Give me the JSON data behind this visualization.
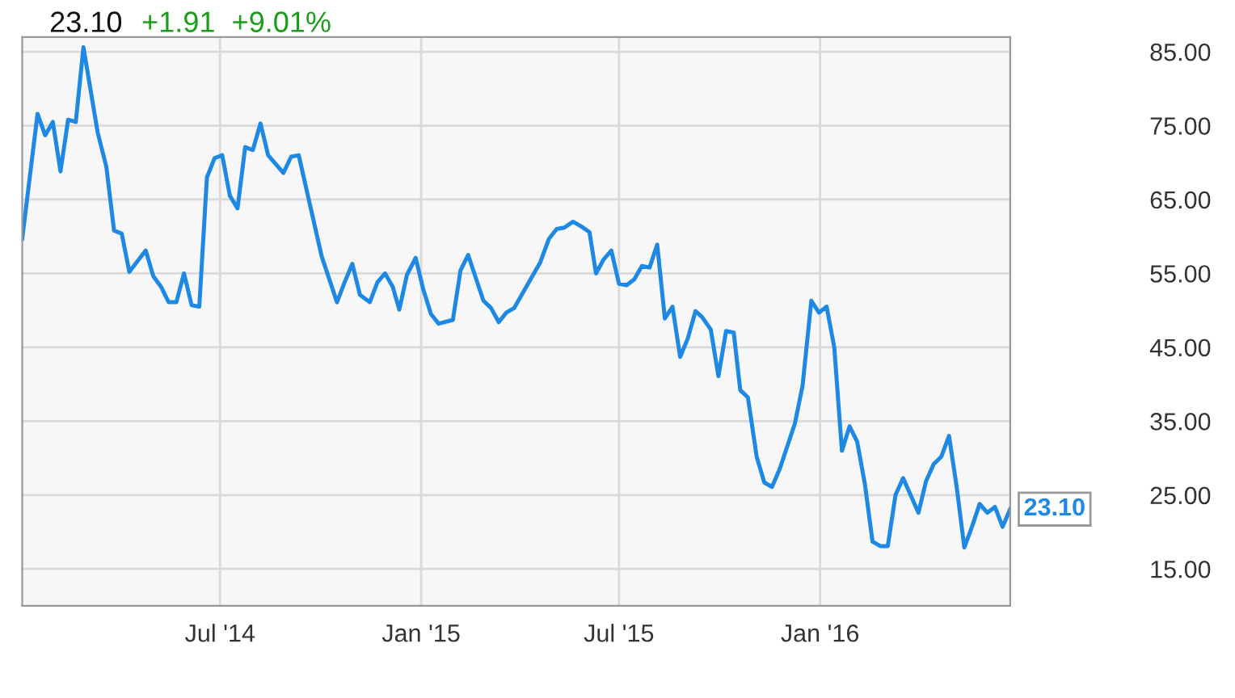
{
  "chart_data": {
    "type": "line",
    "title": "23.10",
    "subtitle": "+1.91  +9.01%",
    "x": [
      "2014-01-01",
      "2014-01-15",
      "2014-01-22",
      "2014-01-29",
      "2014-02-05",
      "2014-02-12",
      "2014-02-19",
      "2014-02-26",
      "2014-03-11",
      "2014-03-19",
      "2014-03-26",
      "2014-04-02",
      "2014-04-09",
      "2014-04-24",
      "2014-05-01",
      "2014-05-08",
      "2014-05-15",
      "2014-05-22",
      "2014-05-29",
      "2014-06-05",
      "2014-06-12",
      "2014-06-19",
      "2014-06-26",
      "2014-07-03",
      "2014-07-10",
      "2014-07-17",
      "2014-07-24",
      "2014-07-31",
      "2014-08-07",
      "2014-08-14",
      "2014-08-28",
      "2014-09-04",
      "2014-09-11",
      "2014-10-02",
      "2014-10-16",
      "2014-10-23",
      "2014-10-30",
      "2014-11-06",
      "2014-11-15",
      "2014-11-22",
      "2014-11-29",
      "2014-12-06",
      "2014-12-12",
      "2014-12-19",
      "2014-12-27",
      "2015-01-03",
      "2015-01-10",
      "2015-01-17",
      "2015-01-30",
      "2015-02-06",
      "2015-02-13",
      "2015-02-20",
      "2015-02-27",
      "2015-03-06",
      "2015-03-13",
      "2015-03-20",
      "2015-03-27",
      "2015-04-20",
      "2015-04-28",
      "2015-05-05",
      "2015-05-12",
      "2015-05-20",
      "2015-05-27",
      "2015-06-04",
      "2015-06-10",
      "2015-06-17",
      "2015-06-24",
      "2015-07-01",
      "2015-07-08",
      "2015-07-15",
      "2015-07-22",
      "2015-07-29",
      "2015-08-05",
      "2015-08-12",
      "2015-08-19",
      "2015-08-26",
      "2015-09-02",
      "2015-09-09",
      "2015-09-15",
      "2015-09-23",
      "2015-09-30",
      "2015-10-07",
      "2015-10-14",
      "2015-10-20",
      "2015-10-27",
      "2015-11-04",
      "2015-11-11",
      "2015-11-18",
      "2015-11-25",
      "2015-12-02",
      "2015-12-09",
      "2015-12-16",
      "2015-12-24",
      "2015-12-31",
      "2016-01-07",
      "2016-01-14",
      "2016-01-21",
      "2016-01-28",
      "2016-02-04",
      "2016-02-11",
      "2016-02-18",
      "2016-02-25",
      "2016-03-03",
      "2016-03-10",
      "2016-03-17",
      "2016-03-31",
      "2016-04-07",
      "2016-04-14",
      "2016-04-21",
      "2016-04-28",
      "2016-05-05",
      "2016-05-12",
      "2016-05-19",
      "2016-05-26",
      "2016-06-02",
      "2016-06-09",
      "2016-06-16",
      "2016-06-23"
    ],
    "series": [
      {
        "color": "#1e88e5",
        "values": [
          59.7,
          76.6,
          73.7,
          75.5,
          68.8,
          75.8,
          75.5,
          85.6,
          74.1,
          69.4,
          60.8,
          60.4,
          55.2,
          58.1,
          54.6,
          53.2,
          51.1,
          51.1,
          55.0,
          50.7,
          50.5,
          68.0,
          70.6,
          71.0,
          65.5,
          63.8,
          72.1,
          71.7,
          75.3,
          71.0,
          68.6,
          70.8,
          71.0,
          57.3,
          51.1,
          53.8,
          56.3,
          52.1,
          51.1,
          53.8,
          55.0,
          53.2,
          50.1,
          54.8,
          57.1,
          52.8,
          49.5,
          48.2,
          48.7,
          55.4,
          57.5,
          54.4,
          51.3,
          50.3,
          48.4,
          49.7,
          50.3,
          56.5,
          59.7,
          61.0,
          61.2,
          62.0,
          61.4,
          60.6,
          55.0,
          56.9,
          58.1,
          53.6,
          53.4,
          54.2,
          56.0,
          55.8,
          58.9,
          48.9,
          50.5,
          43.7,
          46.2,
          49.9,
          49.1,
          47.4,
          41.1,
          47.2,
          47.0,
          39.2,
          38.2,
          30.2,
          26.7,
          26.1,
          28.5,
          31.6,
          34.7,
          39.8,
          51.3,
          49.7,
          50.5,
          45.0,
          31.0,
          34.3,
          32.2,
          26.5,
          18.7,
          18.1,
          18.1,
          25.0,
          27.3,
          22.6,
          26.9,
          29.2,
          30.2,
          33.0,
          26.1,
          17.9,
          20.7,
          23.8,
          22.6,
          23.4,
          20.7,
          23.1
        ]
      }
    ],
    "xlim": [
      "2014-01-01",
      "2016-06-23"
    ],
    "xticks": [
      {
        "value": "2014-07-01",
        "label": "Jul '14"
      },
      {
        "value": "2015-01-01",
        "label": "Jan '15"
      },
      {
        "value": "2015-07-01",
        "label": "Jul '15"
      },
      {
        "value": "2016-01-01",
        "label": "Jan '16"
      }
    ],
    "ylim": [
      10,
      87
    ],
    "yticks": [
      {
        "value": 15,
        "label": "15.00"
      },
      {
        "value": 25,
        "label": "25.00"
      },
      {
        "value": 35,
        "label": "35.00"
      },
      {
        "value": 45,
        "label": "45.00"
      },
      {
        "value": 55,
        "label": "55.00"
      },
      {
        "value": 65,
        "label": "65.00"
      },
      {
        "value": 75,
        "label": "75.00"
      },
      {
        "value": 85,
        "label": "85.00"
      }
    ],
    "annotations": [
      {
        "text": "23.10",
        "x": "2016-06-23",
        "y": 23.1
      }
    ],
    "grid": true,
    "legend": false,
    "marker": "none",
    "line_style": "solid"
  }
}
